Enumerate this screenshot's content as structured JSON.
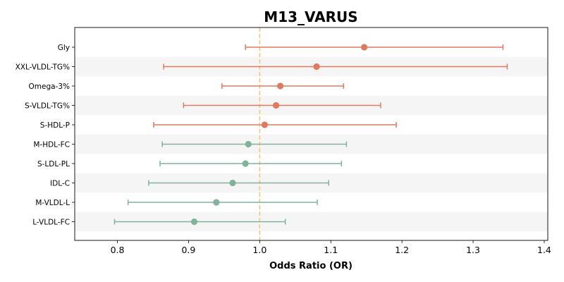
{
  "chart_data": {
    "type": "forest",
    "title": "M13_VARUS",
    "xlabel": "Odds Ratio (OR)",
    "ylabel": "",
    "xlim": [
      0.74,
      1.405
    ],
    "xticks": [
      0.8,
      0.9,
      1.0,
      1.1,
      1.2,
      1.3,
      1.4
    ],
    "xtick_labels": [
      "0.8",
      "0.9",
      "1.0",
      "1.1",
      "1.2",
      "1.3",
      "1.4"
    ],
    "reference_line": 1.0,
    "reference_color": "#f5c77e",
    "colors": {
      "risk": "#e07a5f",
      "protective": "#81b29a"
    },
    "alternating_row_shading": true,
    "grid": false,
    "rows": [
      {
        "label": "Gly",
        "or": 1.147,
        "lower": 0.98,
        "upper": 1.342,
        "group": "risk"
      },
      {
        "label": "XXL-VLDL-TG%",
        "or": 1.08,
        "lower": 0.865,
        "upper": 1.348,
        "group": "risk"
      },
      {
        "label": "Omega-3%",
        "or": 1.029,
        "lower": 0.947,
        "upper": 1.118,
        "group": "risk"
      },
      {
        "label": "S-VLDL-TG%",
        "or": 1.023,
        "lower": 0.893,
        "upper": 1.17,
        "group": "risk"
      },
      {
        "label": "S-HDL-P",
        "or": 1.007,
        "lower": 0.851,
        "upper": 1.192,
        "group": "risk"
      },
      {
        "label": "M-HDL-FC",
        "or": 0.984,
        "lower": 0.863,
        "upper": 1.122,
        "group": "protective"
      },
      {
        "label": "S-LDL-PL",
        "or": 0.98,
        "lower": 0.86,
        "upper": 1.115,
        "group": "protective"
      },
      {
        "label": "IDL-C",
        "or": 0.962,
        "lower": 0.844,
        "upper": 1.097,
        "group": "protective"
      },
      {
        "label": "M-VLDL-L",
        "or": 0.939,
        "lower": 0.815,
        "upper": 1.081,
        "group": "protective"
      },
      {
        "label": "L-VLDL-FC",
        "or": 0.908,
        "lower": 0.796,
        "upper": 1.036,
        "group": "protective"
      }
    ]
  }
}
